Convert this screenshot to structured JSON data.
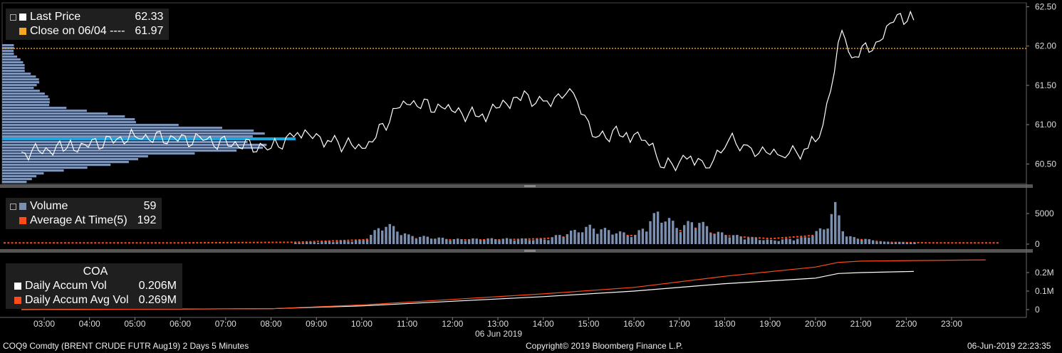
{
  "legend_price": {
    "last_price_label": "Last Price",
    "last_price_value": "62.33",
    "close_label": "Close on 06/04 ----",
    "close_value": "61.97",
    "last_color": "#ffffff",
    "close_color": "#f5a623"
  },
  "legend_volume": {
    "volume_label": "Volume",
    "volume_value": "59",
    "avg_label": "Average At Time(5)",
    "avg_value": "192",
    "volume_color": "#7b8fb0",
    "avg_color": "#ff4a1a"
  },
  "legend_coa": {
    "title": "COA",
    "accum_vol_label": "Daily Accum Vol",
    "accum_vol_value": "0.206M",
    "accum_avg_label": "Daily Accum Avg Vol",
    "accum_avg_value": "0.269M",
    "accum_vol_color": "#ffffff",
    "accum_avg_color": "#ff4a1a"
  },
  "footer": {
    "ticker": "COQ9 Comdty (BRENT CRUDE FUTR  Aug19) 2 Days 5 Minutes",
    "copyright": "Copyright© 2019 Bloomberg Finance L.P.",
    "timestamp": "06-Jun-2019 22:23:35"
  },
  "chart_data": [
    {
      "type": "line",
      "panel": "price",
      "series": [
        {
          "name": "Last Price",
          "x": [
            "02:30",
            "03:30",
            "05:00",
            "06:30",
            "08:00",
            "08:35",
            "09:15",
            "10:05",
            "10:55",
            "11:50",
            "12:35",
            "13:25",
            "14:00",
            "14:40",
            "15:05",
            "15:50",
            "16:15",
            "16:40",
            "17:15",
            "17:40",
            "18:05",
            "18:35",
            "19:15",
            "19:50",
            "20:10",
            "20:35",
            "20:48",
            "21:20",
            "21:48",
            "22:10"
          ],
          "values": [
            60.65,
            60.7,
            60.85,
            60.8,
            60.7,
            60.9,
            60.8,
            60.7,
            61.3,
            61.2,
            61.1,
            61.35,
            61.3,
            61.4,
            60.85,
            60.9,
            60.8,
            60.45,
            60.6,
            60.45,
            60.8,
            60.7,
            60.6,
            60.7,
            61.0,
            62.2,
            61.85,
            62.05,
            62.4,
            62.33
          ]
        }
      ],
      "reference_line": {
        "name": "Close on 06/04",
        "value": 61.97
      },
      "volume_profile_peak": 60.82,
      "y_ticks": [
        "62.50",
        "62.00",
        "61.50",
        "61.00",
        "60.50"
      ],
      "ylim": [
        60.25,
        62.55
      ]
    },
    {
      "type": "bar",
      "panel": "volume",
      "series": [
        {
          "name": "Volume",
          "x": [
            "02:30",
            "06:00",
            "08:30",
            "10:00",
            "10:30",
            "11:00",
            "12:00",
            "13:00",
            "14:00",
            "15:00",
            "16:00",
            "16:30",
            "17:00",
            "17:20",
            "17:45",
            "18:15",
            "19:00",
            "19:45",
            "20:10",
            "20:25",
            "20:40",
            "21:30",
            "22:30",
            "23:30"
          ],
          "values": [
            100,
            60,
            250,
            700,
            3800,
            1600,
            900,
            1000,
            900,
            3200,
            1600,
            5800,
            3000,
            4600,
            2200,
            1500,
            700,
            1200,
            3000,
            7000,
            1400,
            400,
            250,
            80
          ]
        },
        {
          "name": "Average At Time(5)",
          "values": [
            200,
            200,
            300,
            700,
            1200,
            900,
            700,
            700,
            900,
            1500,
            1400,
            1900,
            2200,
            2600,
            1600,
            1200,
            900,
            1300,
            1600,
            2700,
            1000,
            300,
            200,
            200
          ]
        }
      ],
      "y_ticks": [
        "5000",
        "0"
      ],
      "ylim": [
        0,
        8500
      ]
    },
    {
      "type": "line",
      "panel": "coa",
      "series": [
        {
          "name": "Daily Accum Vol",
          "x": [
            "02:30",
            "08:00",
            "10:00",
            "12:00",
            "14:00",
            "16:00",
            "18:00",
            "20:00",
            "20:30",
            "21:00",
            "22:10"
          ],
          "values": [
            0.0,
            0.005,
            0.02,
            0.045,
            0.07,
            0.1,
            0.14,
            0.17,
            0.195,
            0.2,
            0.206
          ]
        },
        {
          "name": "Daily Accum Avg Vol",
          "x": [
            "02:30",
            "08:00",
            "10:00",
            "12:00",
            "14:00",
            "16:00",
            "18:00",
            "20:00",
            "20:30",
            "21:00",
            "23:45"
          ],
          "values": [
            0.0,
            0.005,
            0.025,
            0.055,
            0.085,
            0.12,
            0.18,
            0.23,
            0.255,
            0.262,
            0.269
          ]
        }
      ],
      "y_ticks": [
        "0.2M",
        "0.1M",
        "0"
      ],
      "ylim": [
        0,
        0.29
      ]
    }
  ],
  "x_ticks": [
    "03:00",
    "04:00",
    "05:00",
    "06:00",
    "07:00",
    "08:00",
    "09:00",
    "10:00",
    "11:00",
    "12:00",
    "13:00",
    "14:00",
    "15:00",
    "16:00",
    "17:00",
    "18:00",
    "19:00",
    "20:00",
    "21:00",
    "22:00",
    "23:00"
  ],
  "x_date_label": "06 Jun 2019"
}
